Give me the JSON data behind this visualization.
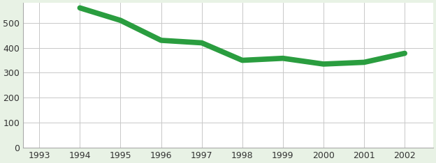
{
  "x": [
    1994,
    1994.3,
    1995,
    1996,
    1997,
    1998,
    1999,
    2000,
    2001,
    2002
  ],
  "y": [
    560,
    545,
    510,
    430,
    420,
    350,
    358,
    335,
    342,
    378
  ],
  "line_color": "#2a9d3f",
  "background_color": "#e8f2e5",
  "plot_background": "#ffffff",
  "grid_color": "#c8c8c8",
  "ylim": [
    0,
    580
  ],
  "yticks": [
    0,
    100,
    200,
    300,
    400,
    500
  ],
  "xlim": [
    1992.6,
    2002.7
  ],
  "xticks": [
    1993,
    1994,
    1995,
    1996,
    1997,
    1998,
    1999,
    2000,
    2001,
    2002
  ],
  "linewidth": 5.5,
  "figsize": [
    6.24,
    2.34
  ],
  "dpi": 100
}
